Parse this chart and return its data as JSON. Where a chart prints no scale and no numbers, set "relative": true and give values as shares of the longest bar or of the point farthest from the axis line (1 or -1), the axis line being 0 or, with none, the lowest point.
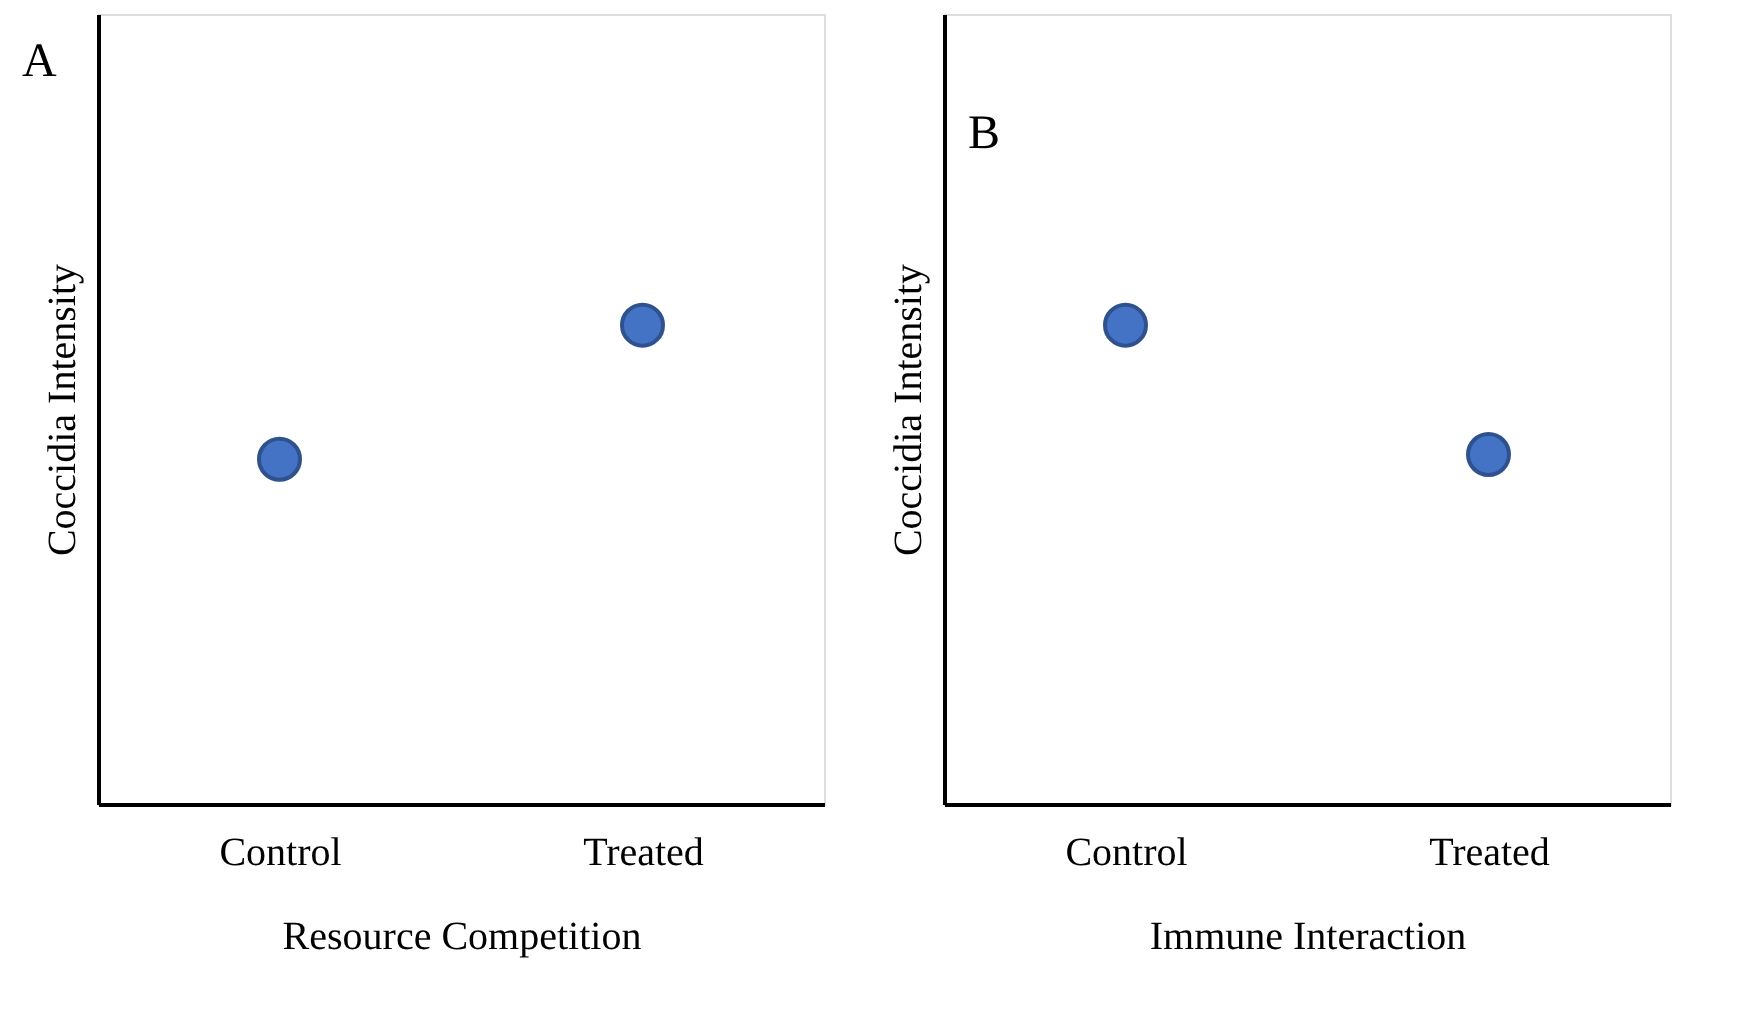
{
  "chart_data": [
    {
      "type": "scatter",
      "relative": true,
      "categories": [
        "Control",
        "Treated"
      ],
      "values": [
        0.72,
        1
      ],
      "color": "#4472c4",
      "marker": "circle",
      "ylabel": "Coccidia Intensity",
      "xlabel": "Resource Competition",
      "annotations": [
        "A"
      ]
    },
    {
      "type": "scatter",
      "relative": true,
      "categories": [
        "Control",
        "Treated"
      ],
      "values": [
        1,
        0.73
      ],
      "color": "#4472c4",
      "marker": "circle",
      "ylabel": "Coccidia Intensity",
      "xlabel": "Immune Interaction",
      "annotations": [
        "B"
      ]
    }
  ]
}
